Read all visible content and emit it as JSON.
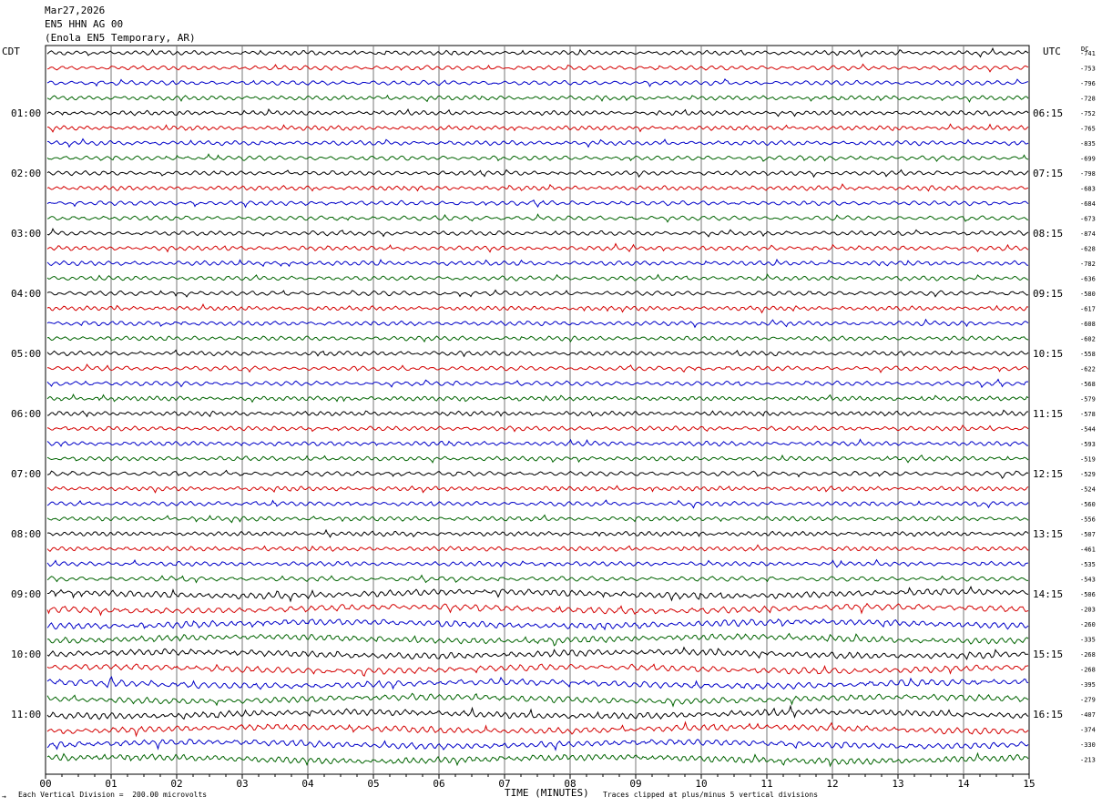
{
  "header": {
    "date": "Mar27,2026",
    "station": "EN5 HHN AG 00",
    "location": "(Enola EN5 Temporary, AR)"
  },
  "left_tz": "CDT",
  "right_tz": "UTC",
  "dc_label": "DC",
  "footer": {
    "scale_mark": "→",
    "scale": "Each Vertical Division =  200.00 microvolts",
    "xlabel": "TIME (MINUTES)",
    "clip": "Traces clipped at plus/minus 5 vertical divisions"
  },
  "chart_data": {
    "type": "line",
    "title": "EN5 HHN AG 00",
    "xlabel": "TIME (MINUTES)",
    "xlim": [
      0,
      15
    ],
    "x_ticks": [
      "00",
      "01",
      "02",
      "03",
      "04",
      "05",
      "06",
      "07",
      "08",
      "09",
      "10",
      "11",
      "12",
      "13",
      "14",
      "15"
    ],
    "left_time_labels": [
      "01:00",
      "02:00",
      "03:00",
      "04:00",
      "05:00",
      "06:00",
      "07:00",
      "08:00",
      "09:00",
      "10:00",
      "11:00"
    ],
    "right_time_labels": [
      "06:15",
      "07:15",
      "08:15",
      "09:15",
      "10:15",
      "11:15",
      "12:15",
      "13:15",
      "14:15",
      "15:15",
      "16:15"
    ],
    "trace_colors": [
      "#000000",
      "#d40000",
      "#0000c8",
      "#006400"
    ],
    "dc_offsets": [
      "-741",
      "-753",
      "-796",
      "-728",
      "-752",
      "-765",
      "-835",
      "-699",
      "-798",
      "-683",
      "-684",
      "-673",
      "-874",
      "-628",
      "-782",
      "-636",
      "-580",
      "-617",
      "-608",
      "-602",
      "-558",
      "-622",
      "-568",
      "-579",
      "-578",
      "-544",
      "-593",
      "-519",
      "-529",
      "-524",
      "-560",
      "-556",
      "-507",
      "-461",
      "-535",
      "-543",
      "-506",
      "-203",
      "-260",
      "-335",
      "-268",
      "-268",
      "-395",
      "-279",
      "-407",
      "-374",
      "-330",
      "-213"
    ]
  }
}
